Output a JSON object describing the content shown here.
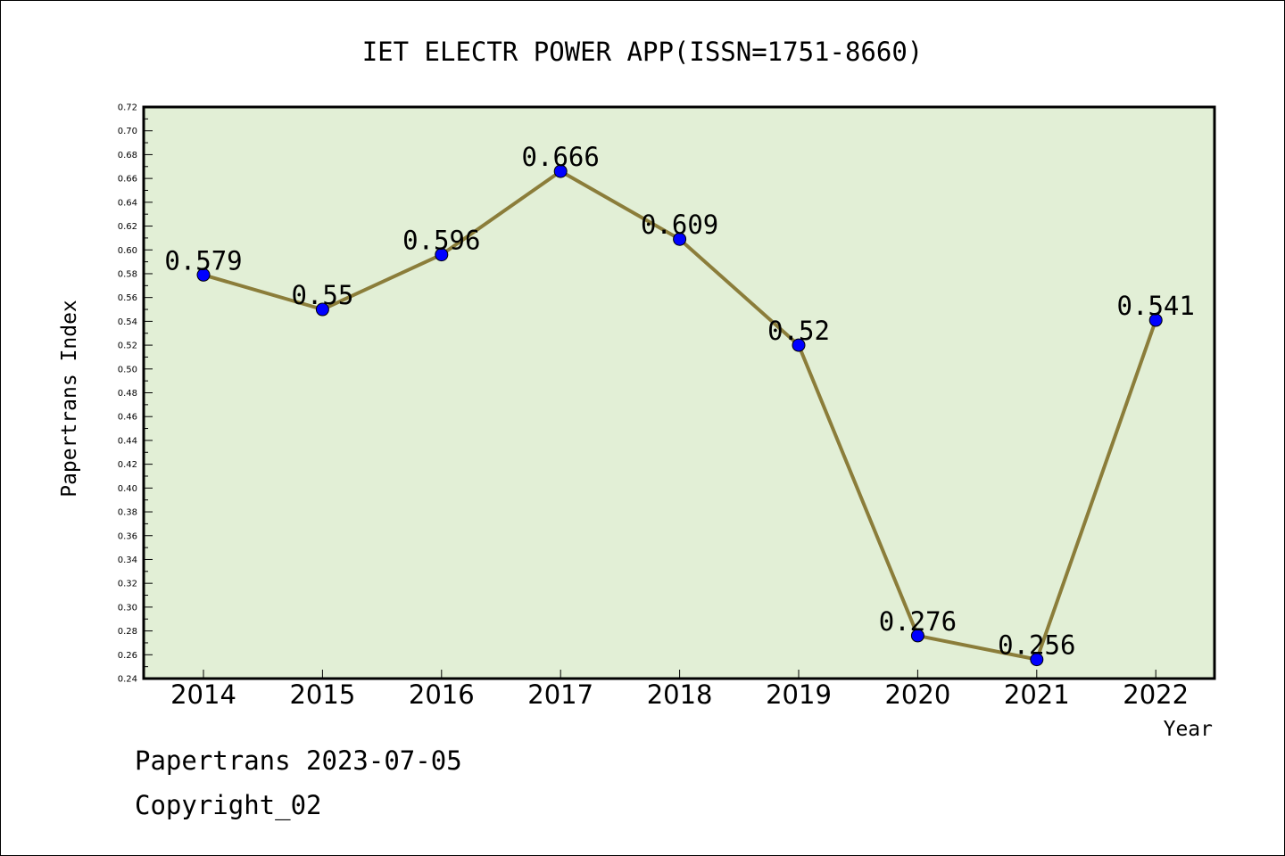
{
  "chart_data": {
    "type": "line",
    "title": "IET ELECTR POWER APP(ISSN=1751-8660)",
    "xlabel": "Year",
    "ylabel": "Papertrans Index",
    "categories": [
      "2014",
      "2015",
      "2016",
      "2017",
      "2018",
      "2019",
      "2020",
      "2021",
      "2022"
    ],
    "series": [
      {
        "values": [
          0.579,
          0.55,
          0.596,
          0.666,
          0.609,
          0.52,
          0.276,
          0.256,
          0.541
        ]
      }
    ],
    "data_labels": [
      "0.579",
      "0.55",
      "0.596",
      "0.666",
      "0.609",
      "0.52",
      "0.276",
      "0.256",
      "0.541"
    ],
    "ylim": [
      0.24,
      0.72
    ],
    "ytick_labels": [
      "0.24",
      "0.26",
      "0.28",
      "0.30",
      "0.32",
      "0.34",
      "0.36",
      "0.38",
      "0.40",
      "0.42",
      "0.44",
      "0.46",
      "0.48",
      "0.50",
      "0.52",
      "0.54",
      "0.56",
      "0.58",
      "0.60",
      "0.62",
      "0.64",
      "0.66",
      "0.68",
      "0.70",
      "0.72"
    ],
    "grid": false,
    "colors": {
      "plot_background": "#e2efd6",
      "line": "#8b7d3a",
      "marker": "#0000ff"
    }
  },
  "footer": {
    "line1": "Papertrans 2023-07-05",
    "line2": "Copyright_02"
  }
}
